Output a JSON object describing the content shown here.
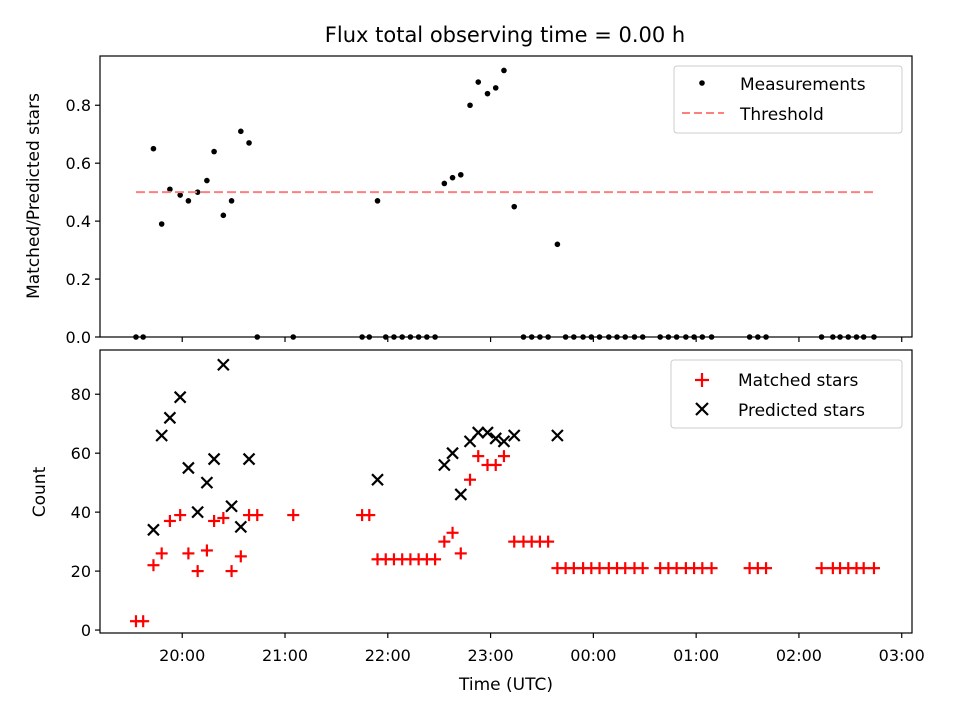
{
  "chart_data": [
    {
      "type": "scatter",
      "title": "Flux total observing time = 0.00 h",
      "xlabel": "",
      "ylabel": "Matched/Predicted stars",
      "xlim": [
        19.2,
        27.1
      ],
      "ylim": [
        0,
        0.97
      ],
      "xticks": [
        20,
        21,
        22,
        23,
        24,
        25,
        26,
        27
      ],
      "xticklabels": [],
      "yticks": [
        0.0,
        0.2,
        0.4,
        0.6,
        0.8
      ],
      "yticklabels": [
        "0.0",
        "0.2",
        "0.4",
        "0.6",
        "0.8"
      ],
      "legend_position": "top-right",
      "series": [
        {
          "name": "Measurements",
          "kind": "scatter",
          "marker": "dot",
          "color": "#000000",
          "points": [
            [
              19.55,
              0.0
            ],
            [
              19.62,
              0.0
            ],
            [
              19.72,
              0.65
            ],
            [
              19.8,
              0.39
            ],
            [
              19.88,
              0.51
            ],
            [
              19.98,
              0.49
            ],
            [
              20.06,
              0.47
            ],
            [
              20.15,
              0.5
            ],
            [
              20.24,
              0.54
            ],
            [
              20.31,
              0.64
            ],
            [
              20.4,
              0.42
            ],
            [
              20.48,
              0.47
            ],
            [
              20.57,
              0.71
            ],
            [
              20.65,
              0.67
            ],
            [
              20.73,
              0.0
            ],
            [
              21.08,
              0.0
            ],
            [
              21.75,
              0.0
            ],
            [
              21.82,
              0.0
            ],
            [
              21.9,
              0.47
            ],
            [
              21.98,
              0.0
            ],
            [
              22.06,
              0.0
            ],
            [
              22.14,
              0.0
            ],
            [
              22.22,
              0.0
            ],
            [
              22.3,
              0.0
            ],
            [
              22.38,
              0.0
            ],
            [
              22.46,
              0.0
            ],
            [
              22.55,
              0.53
            ],
            [
              22.63,
              0.55
            ],
            [
              22.71,
              0.56
            ],
            [
              22.8,
              0.8
            ],
            [
              22.88,
              0.88
            ],
            [
              22.97,
              0.84
            ],
            [
              23.05,
              0.86
            ],
            [
              23.13,
              0.92
            ],
            [
              23.23,
              0.45
            ],
            [
              23.32,
              0.0
            ],
            [
              23.4,
              0.0
            ],
            [
              23.48,
              0.0
            ],
            [
              23.56,
              0.0
            ],
            [
              23.65,
              0.32
            ],
            [
              23.73,
              0.0
            ],
            [
              23.81,
              0.0
            ],
            [
              23.9,
              0.0
            ],
            [
              23.98,
              0.0
            ],
            [
              24.06,
              0.0
            ],
            [
              24.15,
              0.0
            ],
            [
              24.23,
              0.0
            ],
            [
              24.31,
              0.0
            ],
            [
              24.4,
              0.0
            ],
            [
              24.48,
              0.0
            ],
            [
              24.65,
              0.0
            ],
            [
              24.73,
              0.0
            ],
            [
              24.81,
              0.0
            ],
            [
              24.9,
              0.0
            ],
            [
              24.98,
              0.0
            ],
            [
              25.06,
              0.0
            ],
            [
              25.15,
              0.0
            ],
            [
              25.52,
              0.0
            ],
            [
              25.6,
              0.0
            ],
            [
              25.68,
              0.0
            ],
            [
              26.22,
              0.0
            ],
            [
              26.33,
              0.0
            ],
            [
              26.4,
              0.0
            ],
            [
              26.48,
              0.0
            ],
            [
              26.56,
              0.0
            ],
            [
              26.63,
              0.0
            ],
            [
              26.73,
              0.0
            ]
          ]
        },
        {
          "name": "Threshold",
          "kind": "dashed-line",
          "color": "#ff7f7f",
          "points": [
            [
              19.55,
              0.5
            ],
            [
              26.73,
              0.5
            ]
          ]
        }
      ]
    },
    {
      "type": "scatter",
      "title": "",
      "xlabel": "Time (UTC)",
      "ylabel": "Count",
      "xlim": [
        19.2,
        27.1
      ],
      "ylim": [
        -1,
        95
      ],
      "xticks": [
        20,
        21,
        22,
        23,
        24,
        25,
        26,
        27
      ],
      "xticklabels": [
        "20:00",
        "21:00",
        "22:00",
        "23:00",
        "00:00",
        "01:00",
        "02:00",
        "03:00"
      ],
      "yticks": [
        0,
        20,
        40,
        60,
        80
      ],
      "yticklabels": [
        "0",
        "20",
        "40",
        "60",
        "80"
      ],
      "legend_position": "top-right",
      "series": [
        {
          "name": "Matched stars",
          "kind": "scatter",
          "marker": "plus",
          "color": "#ff0000",
          "points": [
            [
              19.55,
              3
            ],
            [
              19.62,
              3
            ],
            [
              19.72,
              22
            ],
            [
              19.8,
              26
            ],
            [
              19.88,
              37
            ],
            [
              19.98,
              39
            ],
            [
              20.06,
              26
            ],
            [
              20.15,
              20
            ],
            [
              20.24,
              27
            ],
            [
              20.31,
              37
            ],
            [
              20.4,
              38
            ],
            [
              20.48,
              20
            ],
            [
              20.57,
              25
            ],
            [
              20.65,
              39
            ],
            [
              20.73,
              39
            ],
            [
              21.08,
              39
            ],
            [
              21.75,
              39
            ],
            [
              21.82,
              39
            ],
            [
              21.9,
              24
            ],
            [
              21.98,
              24
            ],
            [
              22.06,
              24
            ],
            [
              22.14,
              24
            ],
            [
              22.22,
              24
            ],
            [
              22.3,
              24
            ],
            [
              22.38,
              24
            ],
            [
              22.46,
              24
            ],
            [
              22.55,
              30
            ],
            [
              22.63,
              33
            ],
            [
              22.71,
              26
            ],
            [
              22.8,
              51
            ],
            [
              22.88,
              59
            ],
            [
              22.97,
              56
            ],
            [
              23.05,
              56
            ],
            [
              23.13,
              59
            ],
            [
              23.23,
              30
            ],
            [
              23.32,
              30
            ],
            [
              23.4,
              30
            ],
            [
              23.48,
              30
            ],
            [
              23.56,
              30
            ],
            [
              23.65,
              21
            ],
            [
              23.73,
              21
            ],
            [
              23.81,
              21
            ],
            [
              23.9,
              21
            ],
            [
              23.98,
              21
            ],
            [
              24.06,
              21
            ],
            [
              24.15,
              21
            ],
            [
              24.23,
              21
            ],
            [
              24.31,
              21
            ],
            [
              24.4,
              21
            ],
            [
              24.48,
              21
            ],
            [
              24.65,
              21
            ],
            [
              24.73,
              21
            ],
            [
              24.81,
              21
            ],
            [
              24.9,
              21
            ],
            [
              24.98,
              21
            ],
            [
              25.06,
              21
            ],
            [
              25.15,
              21
            ],
            [
              25.52,
              21
            ],
            [
              25.6,
              21
            ],
            [
              25.68,
              21
            ],
            [
              26.22,
              21
            ],
            [
              26.33,
              21
            ],
            [
              26.4,
              21
            ],
            [
              26.48,
              21
            ],
            [
              26.56,
              21
            ],
            [
              26.63,
              21
            ],
            [
              26.73,
              21
            ]
          ]
        },
        {
          "name": "Predicted stars",
          "kind": "scatter",
          "marker": "x",
          "color": "#000000",
          "points": [
            [
              19.72,
              34
            ],
            [
              19.8,
              66
            ],
            [
              19.88,
              72
            ],
            [
              19.98,
              79
            ],
            [
              20.06,
              55
            ],
            [
              20.15,
              40
            ],
            [
              20.24,
              50
            ],
            [
              20.31,
              58
            ],
            [
              20.4,
              90
            ],
            [
              20.48,
              42
            ],
            [
              20.57,
              35
            ],
            [
              20.65,
              58
            ],
            [
              21.9,
              51
            ],
            [
              22.55,
              56
            ],
            [
              22.63,
              60
            ],
            [
              22.71,
              46
            ],
            [
              22.8,
              64
            ],
            [
              22.88,
              67
            ],
            [
              22.97,
              67
            ],
            [
              23.05,
              65
            ],
            [
              23.13,
              64
            ],
            [
              23.23,
              66
            ],
            [
              23.65,
              66
            ]
          ]
        }
      ]
    }
  ]
}
